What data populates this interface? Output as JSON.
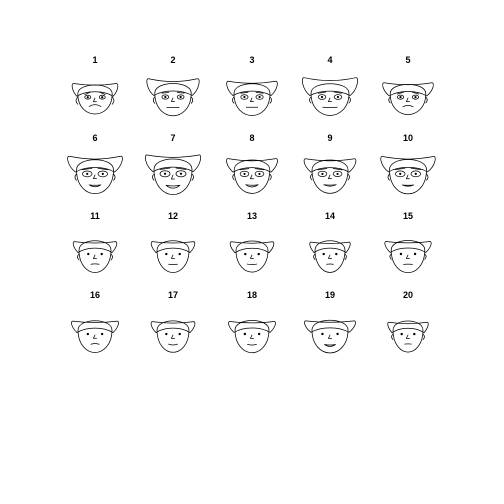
{
  "chart_data": {
    "type": "chernoff-faces",
    "title": "",
    "columns": 5,
    "faces": [
      {
        "label": "1",
        "face_height": 0.55,
        "face_width": 0.72,
        "face_shape": 0.35,
        "hair_height": 0.45,
        "hair_width": 0.55,
        "hair_flip": 0.15,
        "eye_size": 0.25,
        "eye_pupil": 1.0,
        "eyebrow": 0.9,
        "nose": 0.45,
        "mouth_width": 0.55,
        "smile": -0.9,
        "teeth": false,
        "ear": 0.8
      },
      {
        "label": "2",
        "face_height": 0.75,
        "face_width": 0.82,
        "face_shape": 0.3,
        "hair_height": 0.7,
        "hair_width": 0.85,
        "hair_flip": 0.85,
        "eye_size": 0.35,
        "eye_pupil": 1.0,
        "eyebrow": 0.2,
        "nose": 0.35,
        "mouth_width": 0.6,
        "smile": 0.0,
        "teeth": true,
        "ear": 0.6
      },
      {
        "label": "3",
        "face_height": 0.72,
        "face_width": 0.8,
        "face_shape": 0.4,
        "hair_height": 0.55,
        "hair_width": 0.8,
        "hair_flip": 0.4,
        "eye_size": 0.4,
        "eye_pupil": 1.0,
        "eyebrow": 0.3,
        "nose": 0.4,
        "mouth_width": 0.55,
        "smile": 0.0,
        "teeth": true,
        "ear": 0.55
      },
      {
        "label": "4",
        "face_height": 0.72,
        "face_width": 0.9,
        "face_shape": 0.3,
        "hair_height": 0.8,
        "hair_width": 0.95,
        "hair_flip": 0.95,
        "eye_size": 0.45,
        "eye_pupil": 1.0,
        "eyebrow": 0.45,
        "nose": 0.4,
        "mouth_width": 0.75,
        "smile": 0.1,
        "teeth": true,
        "ear": 0.5
      },
      {
        "label": "5",
        "face_height": 0.62,
        "face_width": 0.78,
        "face_shape": 0.35,
        "hair_height": 0.45,
        "hair_width": 0.85,
        "hair_flip": 0.35,
        "eye_size": 0.3,
        "eye_pupil": 1.0,
        "eyebrow": 0.6,
        "nose": 0.4,
        "mouth_width": 0.45,
        "smile": -0.7,
        "teeth": true,
        "ear": 0.45
      },
      {
        "label": "6",
        "face_height": 0.85,
        "face_width": 0.85,
        "face_shape": 0.3,
        "hair_height": 0.6,
        "hair_width": 1.0,
        "hair_flip": 0.9,
        "eye_size": 0.7,
        "eye_pupil": 1.0,
        "eyebrow": 0.5,
        "nose": 0.4,
        "mouth_width": 0.55,
        "smile": 0.6,
        "teeth": true,
        "ear": 0.6
      },
      {
        "label": "7",
        "face_height": 0.95,
        "face_width": 0.9,
        "face_shape": 0.25,
        "hair_height": 0.75,
        "hair_width": 1.0,
        "hair_flip": 0.6,
        "eye_size": 0.75,
        "eye_pupil": 1.0,
        "eyebrow": 0.5,
        "nose": 0.5,
        "mouth_width": 0.7,
        "smile": 0.9,
        "teeth": true,
        "ear": 0.55
      },
      {
        "label": "8",
        "face_height": 0.82,
        "face_width": 0.78,
        "face_shape": 0.3,
        "hair_height": 0.45,
        "hair_width": 0.85,
        "hair_flip": 0.5,
        "eye_size": 0.6,
        "eye_pupil": 1.0,
        "eyebrow": 0.4,
        "nose": 0.45,
        "mouth_width": 0.6,
        "smile": 0.7,
        "teeth": true,
        "ear": 0.5
      },
      {
        "label": "9",
        "face_height": 0.82,
        "face_width": 0.8,
        "face_shape": 0.3,
        "hair_height": 0.45,
        "hair_width": 0.9,
        "hair_flip": 0.45,
        "eye_size": 0.6,
        "eye_pupil": 1.0,
        "eyebrow": 0.45,
        "nose": 0.4,
        "mouth_width": 0.6,
        "smile": 0.5,
        "teeth": true,
        "ear": 0.5
      },
      {
        "label": "10",
        "face_height": 0.88,
        "face_width": 0.85,
        "face_shape": 0.3,
        "hair_height": 0.6,
        "hair_width": 1.0,
        "hair_flip": 0.7,
        "eye_size": 0.7,
        "eye_pupil": 1.0,
        "eyebrow": 0.5,
        "nose": 0.45,
        "mouth_width": 0.55,
        "smile": 0.4,
        "teeth": true,
        "ear": 0.55
      },
      {
        "label": "11",
        "face_height": 0.72,
        "face_width": 0.6,
        "face_shape": 0.2,
        "hair_height": 0.3,
        "hair_width": 0.6,
        "hair_flip": 0.0,
        "eye_size": 0.2,
        "eye_pupil": 0.0,
        "eyebrow": 0.0,
        "nose": 0.4,
        "mouth_width": 0.3,
        "smile": -0.2,
        "teeth": false,
        "ear": 0.5
      },
      {
        "label": "12",
        "face_height": 0.72,
        "face_width": 0.6,
        "face_shape": 0.2,
        "hair_height": 0.3,
        "hair_width": 0.6,
        "hair_flip": 0.0,
        "eye_size": 0.2,
        "eye_pupil": 0.0,
        "eyebrow": 0.0,
        "nose": 0.35,
        "mouth_width": 0.35,
        "smile": 0.1,
        "teeth": false,
        "ear": 0.0
      },
      {
        "label": "13",
        "face_height": 0.68,
        "face_width": 0.6,
        "face_shape": 0.2,
        "hair_height": 0.3,
        "hair_width": 0.6,
        "hair_flip": 0.0,
        "eye_size": 0.2,
        "eye_pupil": 0.0,
        "eyebrow": 0.0,
        "nose": 0.35,
        "mouth_width": 0.4,
        "smile": 0.3,
        "teeth": false,
        "ear": 0.0
      },
      {
        "label": "14",
        "face_height": 0.72,
        "face_width": 0.5,
        "face_shape": 0.15,
        "hair_height": 0.25,
        "hair_width": 0.5,
        "hair_flip": 0.0,
        "eye_size": 0.2,
        "eye_pupil": 0.0,
        "eyebrow": 0.0,
        "nose": 0.35,
        "mouth_width": 0.2,
        "smile": -0.1,
        "teeth": false,
        "ear": 0.4
      },
      {
        "label": "15",
        "face_height": 0.75,
        "face_width": 0.68,
        "face_shape": 0.2,
        "hair_height": 0.3,
        "hair_width": 0.7,
        "hair_flip": 0.0,
        "eye_size": 0.25,
        "eye_pupil": 0.0,
        "eyebrow": 0.0,
        "nose": 0.35,
        "mouth_width": 0.35,
        "smile": -0.1,
        "teeth": false,
        "ear": 0.3
      },
      {
        "label": "16",
        "face_height": 0.72,
        "face_width": 0.7,
        "face_shape": 0.2,
        "hair_height": 0.35,
        "hair_width": 0.72,
        "hair_flip": 0.0,
        "eye_size": 0.25,
        "eye_pupil": 0.0,
        "eyebrow": 0.0,
        "nose": 0.3,
        "mouth_width": 0.3,
        "smile": -0.4,
        "teeth": false,
        "ear": 0.0
      },
      {
        "label": "17",
        "face_height": 0.7,
        "face_width": 0.6,
        "face_shape": 0.2,
        "hair_height": 0.3,
        "hair_width": 0.62,
        "hair_flip": 0.0,
        "eye_size": 0.2,
        "eye_pupil": 0.0,
        "eyebrow": 0.0,
        "nose": 0.35,
        "mouth_width": 0.35,
        "smile": 0.4,
        "teeth": false,
        "ear": 0.0
      },
      {
        "label": "18",
        "face_height": 0.75,
        "face_width": 0.7,
        "face_shape": 0.2,
        "hair_height": 0.3,
        "hair_width": 0.72,
        "hair_flip": 0.0,
        "eye_size": 0.25,
        "eye_pupil": 0.0,
        "eyebrow": 0.0,
        "nose": 0.35,
        "mouth_width": 0.35,
        "smile": 0.3,
        "teeth": false,
        "ear": 0.0
      },
      {
        "label": "19",
        "face_height": 0.78,
        "face_width": 0.8,
        "face_shape": 0.25,
        "hair_height": 0.35,
        "hair_width": 0.9,
        "hair_flip": 0.0,
        "eye_size": 0.3,
        "eye_pupil": 0.0,
        "eyebrow": 0.0,
        "nose": 0.35,
        "mouth_width": 0.5,
        "smile": 0.6,
        "teeth": true,
        "ear": 0.0
      },
      {
        "label": "20",
        "face_height": 0.68,
        "face_width": 0.5,
        "face_shape": 0.15,
        "hair_height": 0.25,
        "hair_width": 0.5,
        "hair_flip": 0.0,
        "eye_size": 0.2,
        "eye_pupil": 0.0,
        "eyebrow": 0.0,
        "nose": 0.35,
        "mouth_width": 0.2,
        "smile": -0.1,
        "teeth": false,
        "ear": 0.4
      }
    ]
  }
}
